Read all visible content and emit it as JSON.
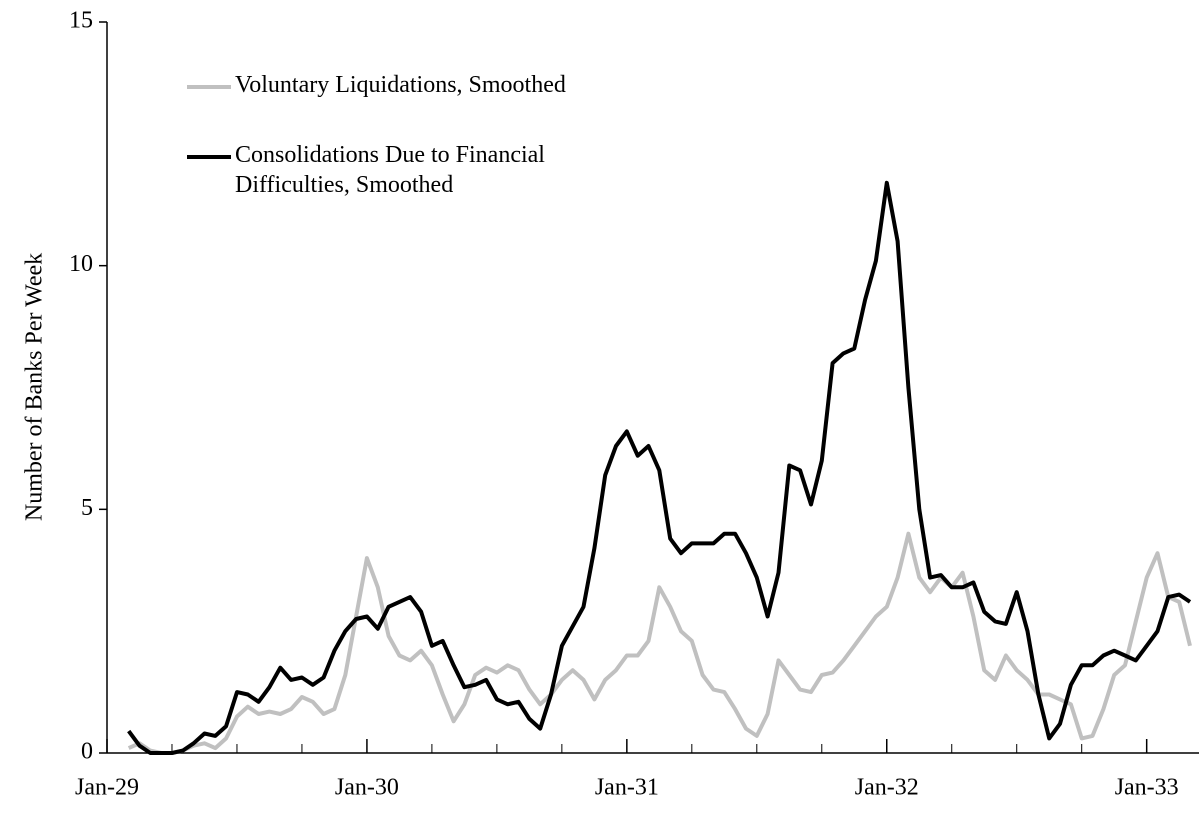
{
  "chart_data": {
    "type": "line",
    "ylabel": "Number of Banks Per Week",
    "categories": [
      "Jan-29",
      null,
      null,
      null,
      null,
      null,
      null,
      null,
      null,
      null,
      null,
      null,
      null,
      null,
      null,
      null,
      null,
      null,
      null,
      null,
      null,
      null,
      null,
      null,
      "Jan-30",
      null,
      null,
      null,
      null,
      null,
      null,
      null,
      null,
      null,
      null,
      null,
      null,
      null,
      null,
      null,
      null,
      null,
      null,
      null,
      null,
      null,
      null,
      null,
      "Jan-31",
      null,
      null,
      null,
      null,
      null,
      null,
      null,
      null,
      null,
      null,
      null,
      null,
      null,
      null,
      null,
      null,
      null,
      null,
      null,
      null,
      null,
      null,
      null,
      "Jan-32",
      null,
      null,
      null,
      null,
      null,
      null,
      null,
      null,
      null,
      null,
      null,
      null,
      null,
      null,
      null,
      null,
      null,
      null,
      null,
      null,
      null,
      null,
      null,
      "Jan-33",
      null,
      null,
      null,
      null
    ],
    "series": [
      {
        "name": "Voluntary Liquidations, Smoothed",
        "color": "#c0c0c0",
        "values": [
          null,
          null,
          0.1,
          0.2,
          0.05,
          0,
          0,
          0.05,
          0.15,
          0.2,
          0.1,
          0.3,
          0.75,
          0.95,
          0.8,
          0.85,
          0.8,
          0.9,
          1.15,
          1.05,
          0.8,
          0.9,
          1.6,
          2.8,
          4.0,
          3.4,
          2.4,
          2.0,
          1.9,
          2.1,
          1.8,
          1.2,
          0.65,
          1.0,
          1.6,
          1.75,
          1.65,
          1.8,
          1.7,
          1.3,
          1.0,
          1.2,
          1.5,
          1.7,
          1.5,
          1.1,
          1.5,
          1.7,
          2.0,
          2.0,
          2.3,
          3.4,
          3.0,
          2.5,
          2.3,
          1.6,
          1.3,
          1.25,
          0.9,
          0.5,
          0.35,
          0.8,
          1.9,
          1.6,
          1.3,
          1.25,
          1.6,
          1.65,
          1.9,
          2.2,
          2.5,
          2.8,
          3.0,
          3.6,
          4.5,
          3.6,
          3.3,
          3.6,
          3.4,
          3.7,
          2.8,
          1.7,
          1.5,
          2.0,
          1.7,
          1.5,
          1.2,
          1.2,
          1.1,
          1.0,
          0.3,
          0.35,
          0.9,
          1.6,
          1.8,
          2.7,
          3.6,
          4.1,
          3.2,
          3.1,
          2.2
        ]
      },
      {
        "name": "Consolidations Due to Financial Difficulties, Smoothed",
        "color": "#000000",
        "values": [
          null,
          null,
          0.45,
          0.15,
          0,
          0,
          0,
          0.05,
          0.2,
          0.4,
          0.35,
          0.55,
          1.25,
          1.2,
          1.05,
          1.35,
          1.75,
          1.5,
          1.55,
          1.4,
          1.55,
          2.1,
          2.5,
          2.75,
          2.8,
          2.55,
          3.0,
          3.1,
          3.2,
          2.9,
          2.2,
          2.3,
          1.8,
          1.35,
          1.4,
          1.5,
          1.1,
          1.0,
          1.05,
          0.7,
          0.5,
          1.2,
          2.2,
          2.6,
          3.0,
          4.2,
          5.7,
          6.3,
          6.6,
          6.1,
          6.3,
          5.8,
          4.4,
          4.1,
          4.3,
          4.3,
          4.3,
          4.5,
          4.5,
          4.1,
          3.6,
          2.8,
          3.7,
          5.9,
          5.8,
          5.1,
          6.0,
          8.0,
          8.2,
          8.3,
          9.3,
          10.1,
          11.7,
          10.5,
          7.5,
          5.0,
          3.6,
          3.65,
          3.4,
          3.4,
          3.5,
          2.9,
          2.7,
          2.65,
          3.3,
          2.5,
          1.2,
          0.3,
          0.6,
          1.4,
          1.8,
          1.8,
          2.0,
          2.1,
          2.0,
          1.9,
          2.2,
          2.5,
          3.2,
          3.25,
          3.1
        ]
      }
    ],
    "ylim": [
      0,
      15
    ],
    "yticks": [
      0,
      5,
      10,
      15
    ]
  }
}
